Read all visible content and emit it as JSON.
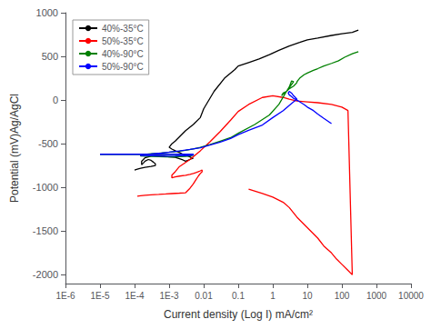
{
  "chart_data": {
    "type": "line",
    "xlabel": "Current density (Log I) mA/cm²",
    "ylabel": "Potential (mV)Ag/AgCl",
    "log": "x",
    "grid": false,
    "legend": "upper left",
    "xlim": [
      1e-06,
      10000
    ],
    "ylim": [
      -2100,
      1000
    ],
    "xticks": [
      {
        "value": 1e-06,
        "label": "1E-6"
      },
      {
        "value": 1e-05,
        "label": "1E-5"
      },
      {
        "value": 0.0001,
        "label": "1E-4"
      },
      {
        "value": 0.001,
        "label": "1E-3"
      },
      0.01,
      0.1,
      1,
      10,
      100,
      1000,
      10000
    ],
    "yticks": [
      -2000,
      -1500,
      -1000,
      -500,
      0,
      500,
      1000
    ],
    "series": [
      {
        "name": "40%-35°C",
        "color": "black",
        "x": [
          0.0001,
          0.00012,
          0.00015,
          0.0002,
          0.0003,
          0.0004,
          0.0004,
          0.00035,
          0.0003,
          0.00025,
          0.0002,
          0.00018,
          0.00016,
          0.00016,
          0.00018,
          0.0002,
          0.00025,
          0.0003,
          0.0004,
          0.0005,
          0.0006,
          0.0007,
          0.0008,
          0.0009,
          0.001,
          0.0015,
          0.002,
          0.0025,
          0.003,
          0.0035,
          0.004,
          0.0045,
          0.005,
          0.0045,
          0.004,
          0.0035,
          0.003,
          0.0025,
          0.002,
          0.0015,
          0.0012,
          0.001,
          0.0012,
          0.0015,
          0.002,
          0.003,
          0.005,
          0.008,
          0.01,
          0.02,
          0.04,
          0.08,
          0.1,
          0.2,
          0.4,
          0.8,
          1.5,
          3,
          6,
          10,
          20,
          50,
          100,
          200,
          300
        ],
        "values": [
          -800,
          -790,
          -780,
          -770,
          -760,
          -750,
          -730,
          -710,
          -690,
          -680,
          -700,
          -720,
          -740,
          -700,
          -680,
          -660,
          -650,
          -640,
          -635,
          -635,
          -637,
          -640,
          -645,
          -648,
          -650,
          -655,
          -670,
          -685,
          -700,
          -690,
          -680,
          -670,
          -665,
          -660,
          -650,
          -640,
          -630,
          -620,
          -600,
          -580,
          -560,
          -540,
          -500,
          -470,
          -420,
          -350,
          -280,
          -200,
          -100,
          100,
          250,
          350,
          390,
          430,
          470,
          520,
          570,
          620,
          660,
          690,
          710,
          740,
          760,
          775,
          800
        ]
      },
      {
        "name": "50%-35°C",
        "color": "red",
        "x": [
          0.00012,
          0.00015,
          0.0002,
          0.0003,
          0.0005,
          0.0008,
          0.0012,
          0.002,
          0.003,
          0.004,
          0.005,
          0.006,
          0.007,
          0.008,
          0.009,
          0.009,
          0.008,
          0.007,
          0.006,
          0.005,
          0.004,
          0.003,
          0.002,
          0.0015,
          0.0012,
          0.0012,
          0.0015,
          0.002,
          0.004,
          0.008,
          0.015,
          0.03,
          0.06,
          0.1,
          0.2,
          0.5,
          1,
          2,
          3,
          5,
          10,
          20,
          50,
          100,
          150,
          200,
          150,
          100,
          70,
          50,
          30,
          20,
          10,
          5,
          3,
          2,
          1,
          0.5,
          0.2
        ],
        "values": [
          -1100,
          -1095,
          -1090,
          -1085,
          -1080,
          -1075,
          -1070,
          -1065,
          -1060,
          -1010,
          -960,
          -910,
          -870,
          -840,
          -820,
          -800,
          -810,
          -820,
          -830,
          -840,
          -850,
          -860,
          -870,
          -880,
          -890,
          -860,
          -820,
          -760,
          -680,
          -580,
          -480,
          -360,
          -230,
          -130,
          -50,
          30,
          50,
          30,
          10,
          -10,
          -20,
          -30,
          -50,
          -80,
          -120,
          -2000,
          -1950,
          -1880,
          -1820,
          -1750,
          -1670,
          -1580,
          -1460,
          -1340,
          -1230,
          -1170,
          -1110,
          -1070,
          -1020
        ]
      },
      {
        "name": "40%-90°C",
        "color": "green",
        "x": [
          1e-05,
          2e-05,
          4e-05,
          8e-05,
          0.00015,
          0.0003,
          0.0005,
          0.0008,
          0.0012,
          0.002,
          0.003,
          0.005,
          0.005,
          0.004,
          0.003,
          0.002,
          0.0015,
          0.0012,
          0.0008,
          0.0005,
          0.0003,
          0.00015,
          0.00015,
          0.0002,
          0.0003,
          0.0005,
          0.0008,
          0.0015,
          0.003,
          0.005,
          0.008,
          0.015,
          0.03,
          0.06,
          0.1,
          0.3,
          0.8,
          1.5,
          2.5,
          4,
          3.5,
          3,
          2.5,
          2,
          1.8,
          2,
          2.5,
          3,
          4,
          5,
          5,
          6,
          8,
          10,
          15,
          20,
          30,
          50,
          80,
          120,
          200,
          300
        ],
        "values": [
          -620,
          -621,
          -620,
          -620,
          -620,
          -621,
          -620,
          -620,
          -620,
          -622,
          -622,
          -622,
          -630,
          -640,
          -645,
          -648,
          -650,
          -651,
          -650,
          -648,
          -645,
          -640,
          -630,
          -622,
          -615,
          -608,
          -600,
          -590,
          -575,
          -558,
          -540,
          -510,
          -470,
          -430,
          -380,
          -280,
          -170,
          -50,
          100,
          210,
          220,
          150,
          100,
          80,
          50,
          70,
          100,
          130,
          160,
          200,
          210,
          250,
          290,
          310,
          340,
          360,
          390,
          420,
          450,
          490,
          530,
          555
        ]
      },
      {
        "name": "50%-90°C",
        "color": "blue",
        "x": [
          1e-05,
          2e-05,
          4e-05,
          8e-05,
          0.00015,
          0.0003,
          0.0005,
          0.0008,
          0.0012,
          0.002,
          0.003,
          0.005,
          0.005,
          0.004,
          0.003,
          0.002,
          0.0015,
          0.0008,
          0.0005,
          0.0003,
          0.00015,
          0.00015,
          0.0003,
          0.0006,
          0.001,
          0.002,
          0.004,
          0.008,
          0.015,
          0.03,
          0.06,
          0.1,
          0.2,
          0.5,
          1,
          2,
          3,
          4,
          5,
          4.5,
          4,
          3.5,
          3,
          2.8,
          3,
          3.5,
          4,
          5,
          6,
          8,
          10,
          15,
          20,
          30,
          50
        ],
        "values": [
          -620,
          -620,
          -620,
          -620,
          -620,
          -621,
          -621,
          -620,
          -620,
          -620,
          -620,
          -620,
          -628,
          -632,
          -636,
          -638,
          -640,
          -642,
          -640,
          -638,
          -635,
          -625,
          -616,
          -606,
          -596,
          -582,
          -565,
          -545,
          -515,
          -480,
          -440,
          -395,
          -345,
          -285,
          -200,
          -120,
          -60,
          -20,
          10,
          30,
          50,
          80,
          100,
          80,
          60,
          40,
          20,
          0,
          -20,
          -50,
          -80,
          -120,
          -160,
          -210,
          -270
        ]
      }
    ]
  }
}
